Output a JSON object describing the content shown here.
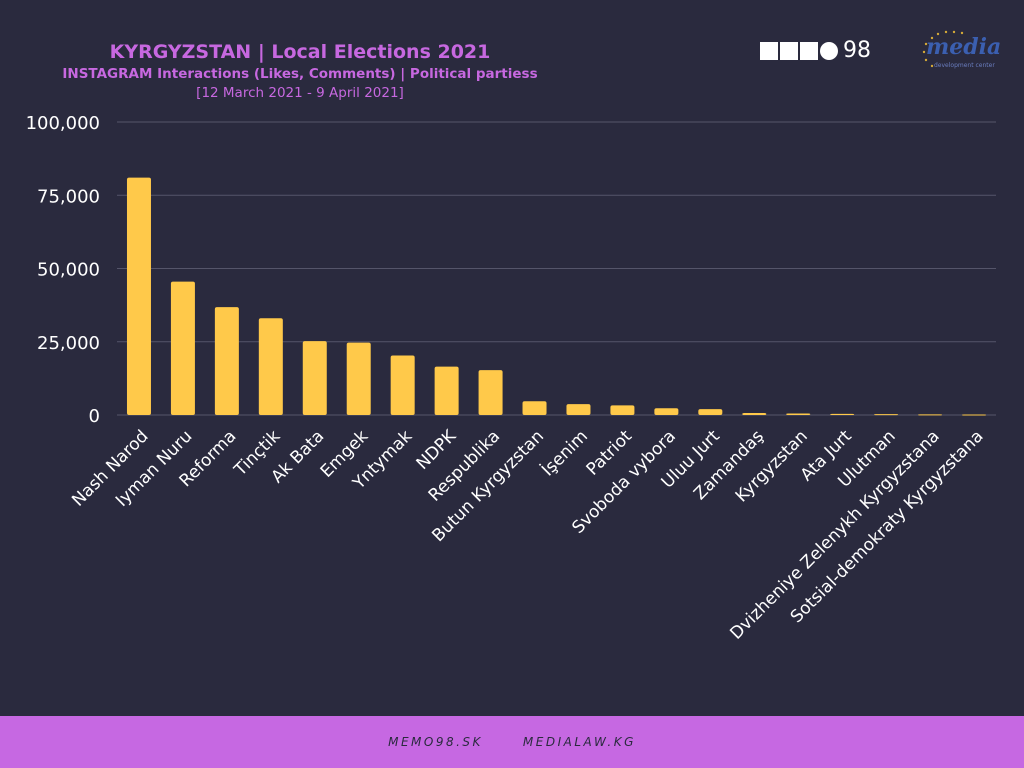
{
  "header": {
    "title": "KYRGYZSTAN | Local Elections 2021",
    "subtitle": "INSTAGRAM Interactions (Likes, Comments) | Political partiess",
    "period": "[12 March 2021 - 9 April 2021]"
  },
  "logos": {
    "memo_number": "98",
    "media_word": "media",
    "media_sub": "development center"
  },
  "footer": {
    "link1": "MEMO98.SK",
    "link2": "MEDIALAW.KG"
  },
  "colors": {
    "bar": "#ffc94a",
    "background": "#2a2a3e",
    "accent": "#c768e0",
    "grid": "#55556a"
  },
  "chart_data": {
    "type": "bar",
    "title": "KYRGYZSTAN | Local Elections 2021",
    "categories": [
      "Nash Narod",
      "Iyman Nuru",
      "Reforma",
      "Tinçtik",
      "Ak Bata",
      "Emgek",
      "Yntymak",
      "NDPK",
      "Respublika",
      "Butun Kyrgyzstan",
      "İşenim",
      "Patriot",
      "Svoboda vybora",
      "Uluu Jurt",
      "Zamandaş",
      "Kyrgyzstan",
      "Ata Jurt",
      "Ulutman",
      "Dvizheniye Zelenykh Kyrgyzstana",
      "Sotsial-demokraty Kyrgyzstana"
    ],
    "values": [
      81000,
      45500,
      36800,
      33000,
      25200,
      24700,
      20300,
      16500,
      15300,
      4700,
      3700,
      3300,
      2300,
      2000,
      700,
      500,
      400,
      300,
      200,
      150
    ],
    "yticks": [
      "0",
      "25,000",
      "50,000",
      "75,000",
      "100,000"
    ],
    "ylim": [
      0,
      100000
    ],
    "grid": true,
    "xlabel": "",
    "ylabel": ""
  }
}
